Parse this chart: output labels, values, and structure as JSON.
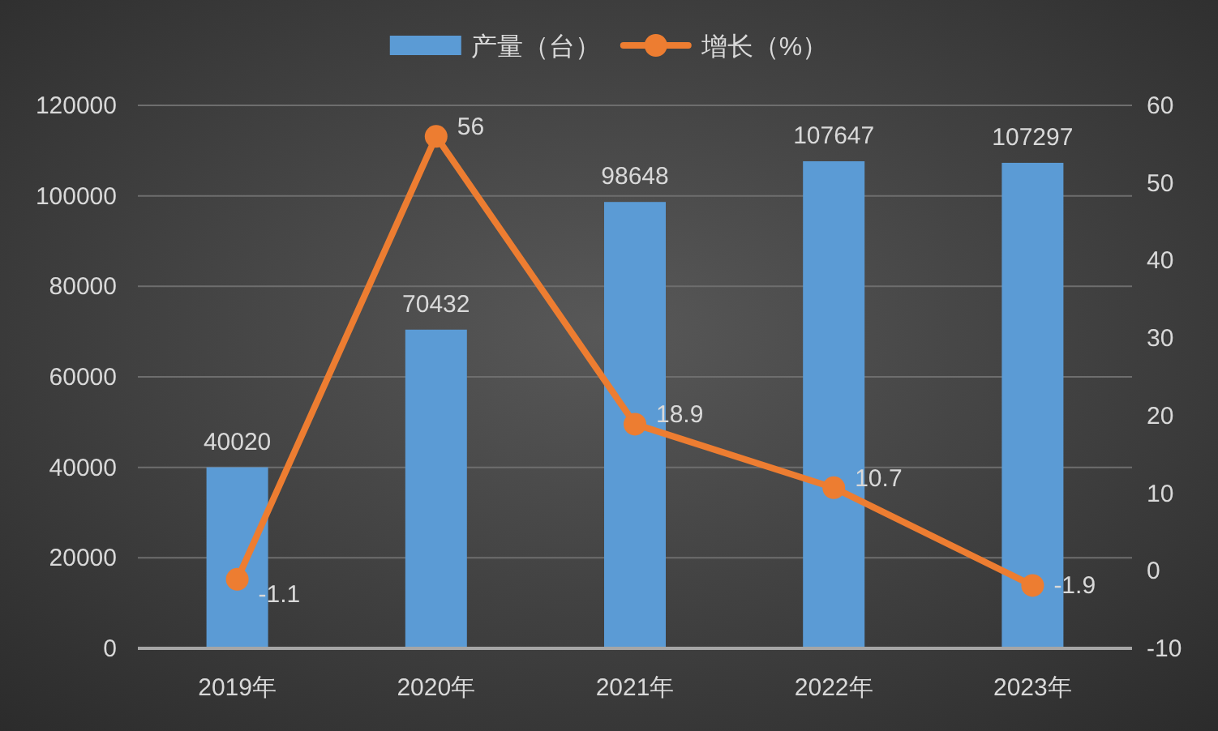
{
  "chart_data": {
    "type": "bar",
    "categories": [
      "2019年",
      "2020年",
      "2021年",
      "2022年",
      "2023年"
    ],
    "series": [
      {
        "name": "产量（台）",
        "color": "#5b9bd5",
        "values": [
          40020,
          70432,
          98648,
          107647,
          107297
        ]
      },
      {
        "name": "增长（%）",
        "type": "line",
        "axis": "y2",
        "color": "#ed7d31",
        "values": [
          -1.1,
          56,
          18.9,
          10.7,
          -1.9
        ]
      }
    ],
    "ylim": [
      0,
      120000
    ],
    "yticks": [
      0,
      20000,
      40000,
      60000,
      80000,
      100000,
      120000
    ],
    "y2lim": [
      -10,
      60
    ],
    "y2ticks": [
      -10,
      0,
      10,
      20,
      30,
      40,
      50,
      60
    ],
    "data_labels": true,
    "grid": "y",
    "legend": "top",
    "marker": "circle",
    "line_style": "solid"
  }
}
